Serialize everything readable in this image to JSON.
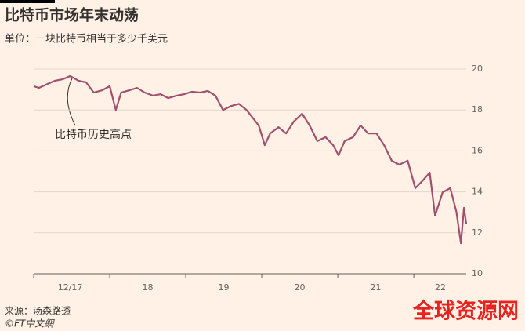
{
  "chart_data": {
    "type": "line",
    "title": "比特币市场年末动荡",
    "subtitle": "单位：一块比特币相当于多少千美元",
    "annotation": "比特币历史高点",
    "source": "来源：汤森路透",
    "credit": "©FT中文網",
    "watermark": "全球资源网",
    "x": [
      0,
      0.07,
      0.18,
      0.28,
      0.38,
      0.48,
      0.59,
      0.69,
      0.79,
      0.9,
      1.0,
      1.08,
      1.15,
      1.26,
      1.36,
      1.46,
      1.57,
      1.67,
      1.77,
      1.88,
      1.98,
      2.08,
      2.19,
      2.29,
      2.39,
      2.49,
      2.6,
      2.7,
      2.8,
      2.88,
      2.96,
      3.04,
      3.11,
      3.22,
      3.32,
      3.42,
      3.53,
      3.63,
      3.73,
      3.84,
      3.94,
      4.01,
      4.09,
      4.2,
      4.3,
      4.4,
      4.51,
      4.61,
      4.71,
      4.81,
      4.92,
      5.02,
      5.12,
      5.21,
      5.28,
      5.38,
      5.48,
      5.56,
      5.62,
      5.66,
      5.69
    ],
    "series": [
      {
        "color": "#a0506e",
        "values": [
          19.16,
          19.08,
          19.27,
          19.43,
          19.5,
          19.66,
          19.43,
          19.35,
          18.85,
          18.96,
          19.16,
          18.0,
          18.85,
          18.96,
          19.08,
          18.85,
          18.7,
          18.77,
          18.58,
          18.7,
          18.77,
          18.89,
          18.85,
          18.93,
          18.7,
          18.0,
          18.2,
          18.3,
          18.0,
          17.62,
          17.24,
          16.28,
          16.85,
          17.16,
          16.85,
          17.43,
          17.82,
          17.24,
          16.48,
          16.67,
          16.28,
          15.79,
          16.48,
          16.67,
          17.24,
          16.85,
          16.85,
          16.28,
          15.52,
          15.33,
          15.52,
          14.18,
          14.56,
          14.94,
          12.84,
          13.98,
          14.18,
          13.03,
          11.49,
          13.22,
          12.45
        ]
      }
    ],
    "xlim": [
      0,
      5.69
    ],
    "xticks": [
      {
        "value": 0.48,
        "label": "12/17"
      },
      {
        "value": 1.5,
        "label": "18"
      },
      {
        "value": 2.5,
        "label": "19"
      },
      {
        "value": 3.5,
        "label": "20"
      },
      {
        "value": 4.5,
        "label": "21"
      },
      {
        "value": 5.35,
        "label": "22"
      }
    ],
    "xminorticks": [
      0,
      1,
      2,
      3,
      4,
      5
    ],
    "ylim": [
      10,
      20
    ],
    "yticks": [
      10,
      12,
      14,
      16,
      18,
      20
    ],
    "grid": true
  }
}
